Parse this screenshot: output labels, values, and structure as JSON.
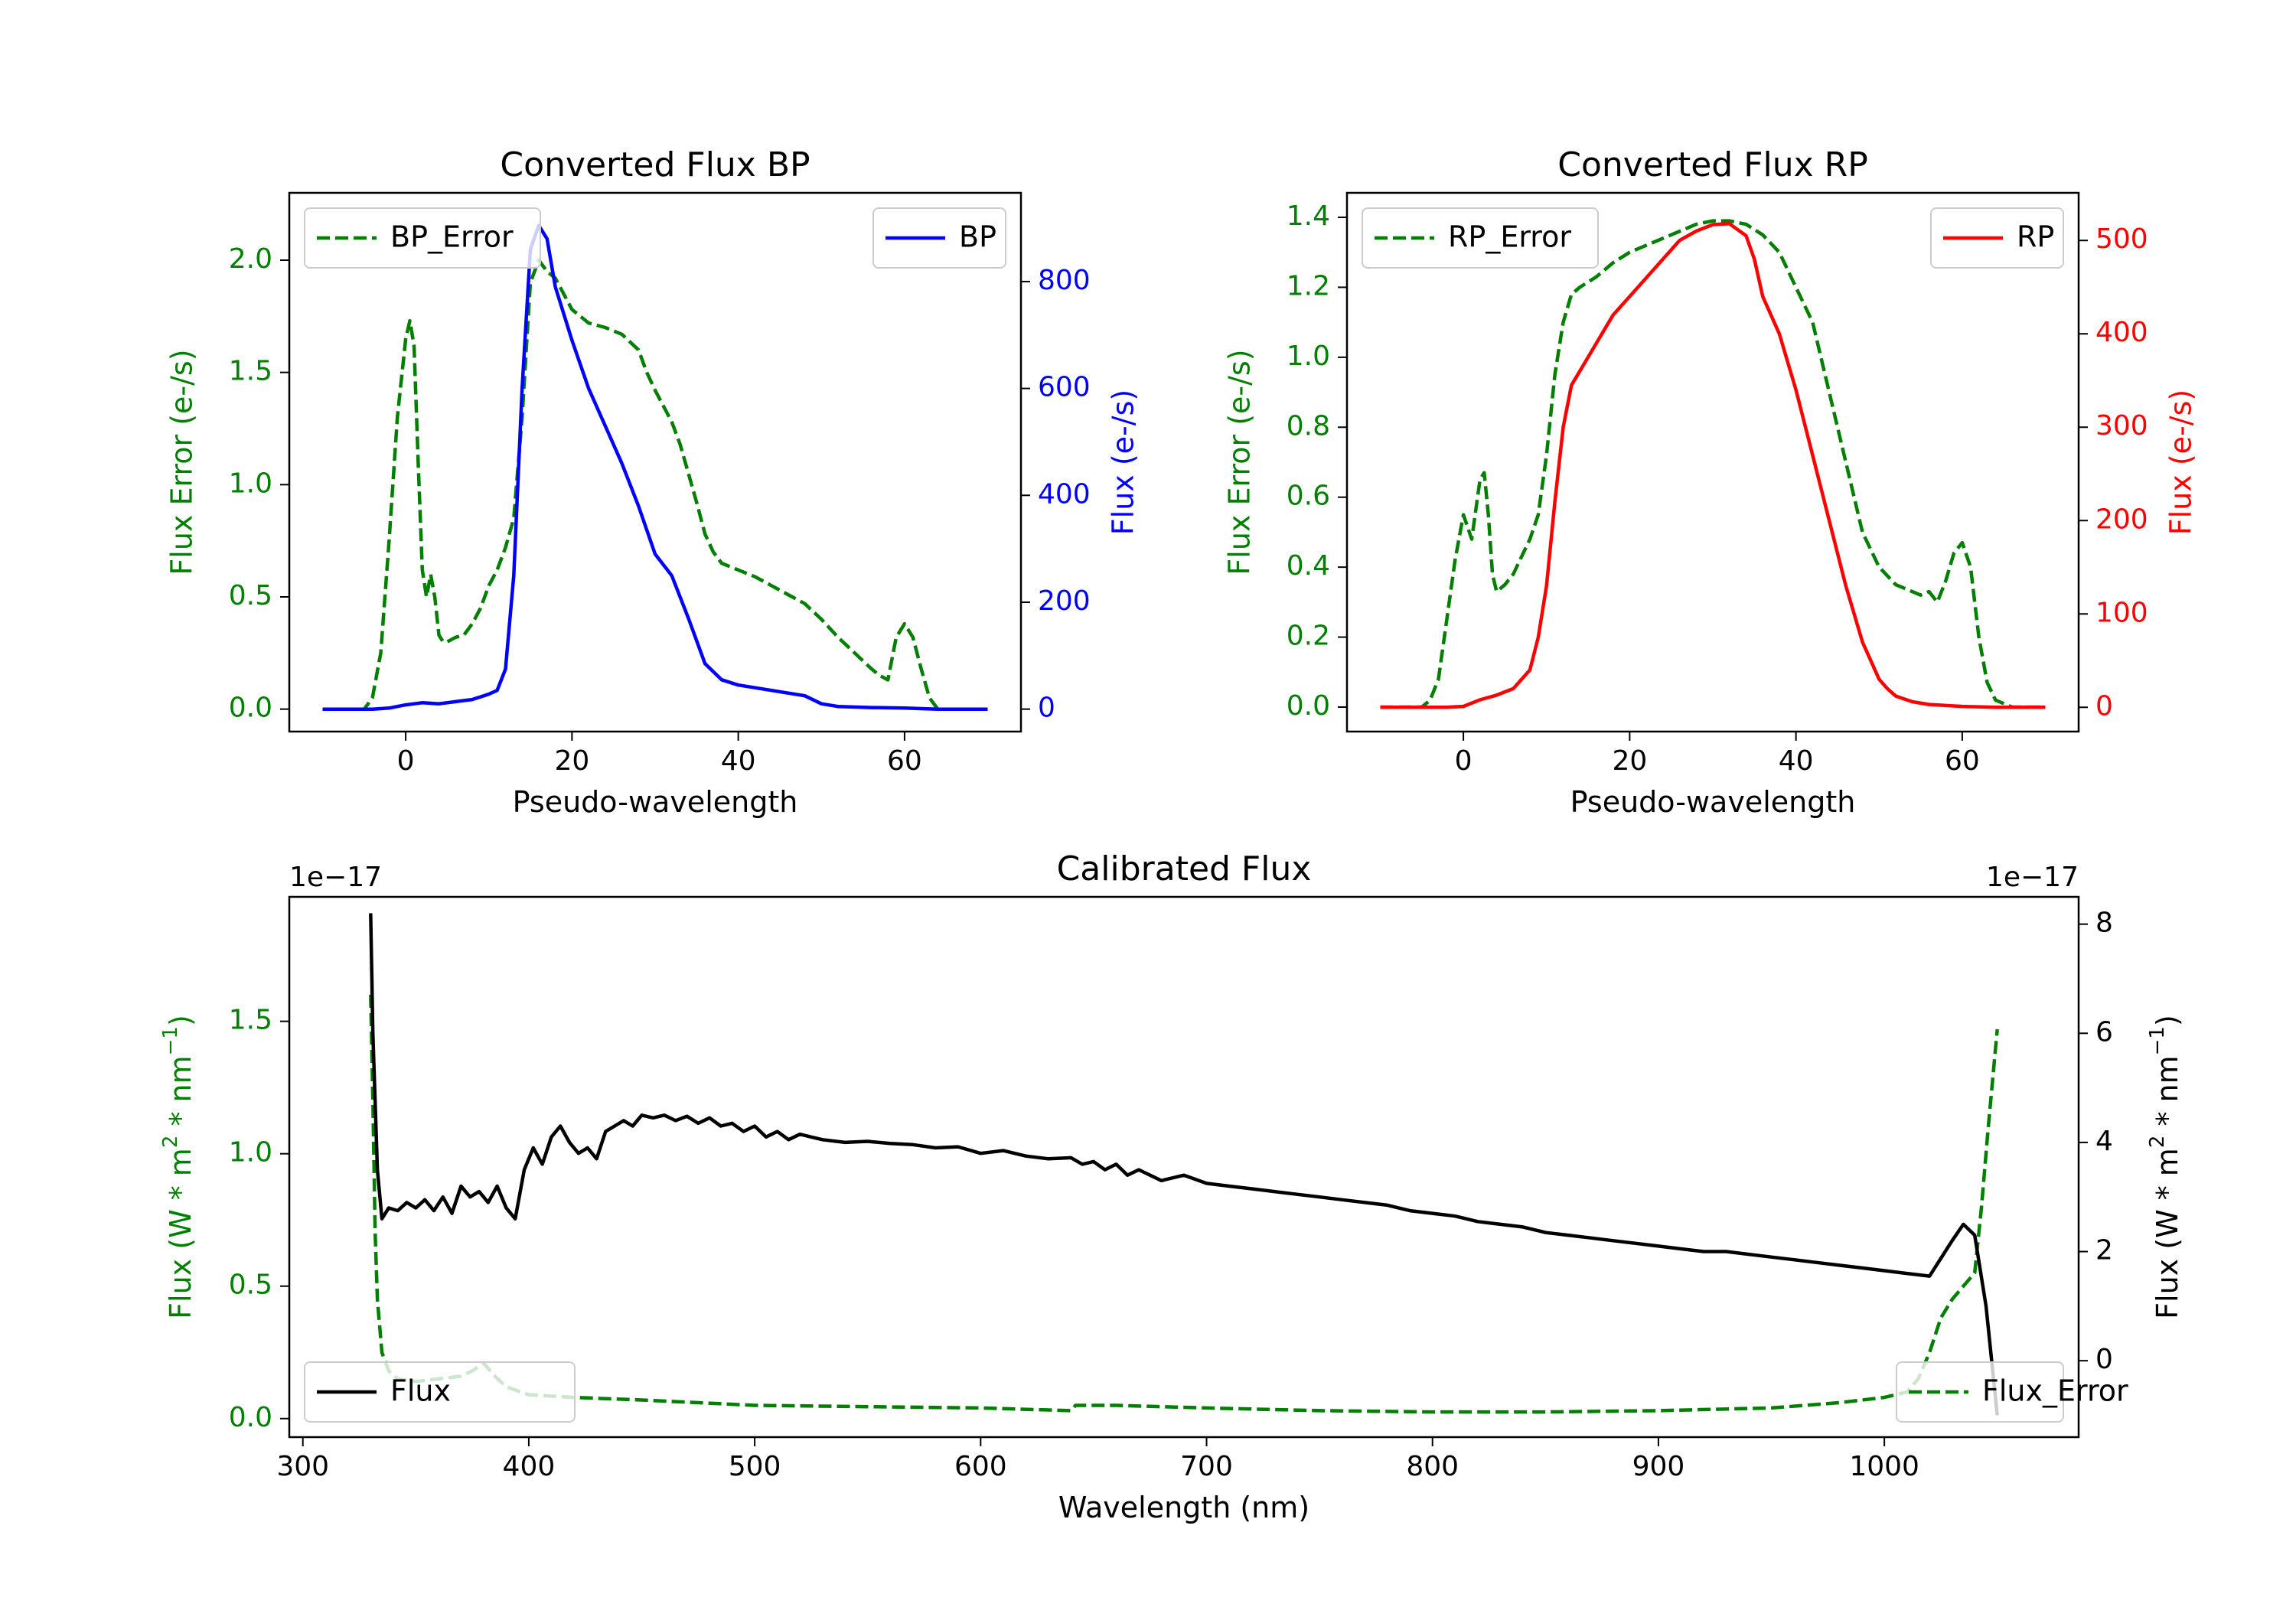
{
  "colors": {
    "error": "#007f00",
    "bp": "#0000ff",
    "rp": "#ff0000",
    "flux": "#000000"
  },
  "chart_data": [
    {
      "type": "line",
      "title": "Converted Flux BP",
      "xlabel": "Pseudo-wavelength",
      "ylabel_left": "Flux Error (e-/s)",
      "ylabel_right": "Flux (e-/s)",
      "xlim": [
        -14,
        74
      ],
      "ylim_left": [
        -0.1,
        2.3
      ],
      "ylim_right": [
        -42,
        966
      ],
      "xticks": [
        0,
        20,
        40,
        60
      ],
      "xtick_labels": [
        "0",
        "20",
        "40",
        "60"
      ],
      "yticks_left": [
        0.0,
        0.5,
        1.0,
        1.5,
        2.0
      ],
      "ytick_labels_left": [
        "0.0",
        "0.5",
        "1.0",
        "1.5",
        "2.0"
      ],
      "yticks_right": [
        0,
        200,
        400,
        600,
        800
      ],
      "ytick_labels_right": [
        "0",
        "200",
        "400",
        "600",
        "800"
      ],
      "legend_left": {
        "label": "BP_Error",
        "position": "upper left"
      },
      "legend_right": {
        "label": "BP",
        "position": "upper right"
      },
      "series": [
        {
          "name": "BP_Error",
          "axis": "left",
          "style": "dashed",
          "color_key": "error",
          "x": [
            -10,
            -5,
            -4,
            -3,
            -2,
            -1,
            0,
            0.5,
            1,
            1.5,
            2,
            2.5,
            3,
            3.5,
            4,
            4.5,
            5,
            6,
            7,
            8,
            9,
            10,
            11,
            12,
            13,
            14,
            15,
            16,
            17,
            18,
            19,
            20,
            22,
            24,
            26,
            28,
            29,
            30,
            31,
            32,
            33,
            34,
            35,
            36,
            37,
            38,
            40,
            42,
            44,
            46,
            48,
            50,
            52,
            54,
            56,
            57,
            58,
            59,
            60,
            61,
            62,
            63,
            64,
            66,
            70
          ],
          "y": [
            0,
            0,
            0.05,
            0.25,
            0.75,
            1.3,
            1.65,
            1.73,
            1.62,
            1.1,
            0.62,
            0.5,
            0.6,
            0.5,
            0.33,
            0.3,
            0.3,
            0.32,
            0.33,
            0.38,
            0.45,
            0.55,
            0.62,
            0.72,
            0.85,
            1.3,
            1.9,
            2.0,
            1.95,
            1.92,
            1.85,
            1.78,
            1.72,
            1.7,
            1.67,
            1.6,
            1.5,
            1.42,
            1.35,
            1.28,
            1.18,
            1.05,
            0.92,
            0.78,
            0.7,
            0.65,
            0.62,
            0.59,
            0.55,
            0.51,
            0.47,
            0.4,
            0.32,
            0.25,
            0.18,
            0.15,
            0.13,
            0.32,
            0.38,
            0.32,
            0.18,
            0.05,
            0.0,
            0,
            0
          ]
        },
        {
          "name": "BP",
          "axis": "right",
          "style": "solid",
          "color_key": "bp",
          "x": [
            -10,
            -4,
            -2,
            0,
            2,
            4,
            6,
            8,
            10,
            11,
            12,
            13,
            14,
            15,
            16,
            17,
            18,
            19,
            20,
            22,
            24,
            26,
            28,
            30,
            32,
            34,
            36,
            38,
            40,
            42,
            44,
            46,
            48,
            50,
            52,
            56,
            60,
            64,
            66,
            70
          ],
          "y": [
            0,
            0,
            2,
            8,
            12,
            10,
            14,
            18,
            28,
            35,
            75,
            250,
            600,
            860,
            905,
            880,
            790,
            740,
            690,
            600,
            530,
            460,
            380,
            290,
            250,
            170,
            85,
            55,
            45,
            40,
            35,
            30,
            25,
            10,
            5,
            3,
            2,
            0,
            0,
            0
          ]
        }
      ]
    },
    {
      "type": "line",
      "title": "Converted Flux RP",
      "xlabel": "Pseudo-wavelength",
      "ylabel_left": "Flux Error (e-/s)",
      "ylabel_right": "Flux (e-/s)",
      "xlim": [
        -14,
        74
      ],
      "ylim_left": [
        -0.07,
        1.47
      ],
      "ylim_right": [
        -26,
        551
      ],
      "xticks": [
        0,
        20,
        40,
        60
      ],
      "xtick_labels": [
        "0",
        "20",
        "40",
        "60"
      ],
      "yticks_left": [
        0.0,
        0.2,
        0.4,
        0.6,
        0.8,
        1.0,
        1.2,
        1.4
      ],
      "ytick_labels_left": [
        "0.0",
        "0.2",
        "0.4",
        "0.6",
        "0.8",
        "1.0",
        "1.2",
        "1.4"
      ],
      "yticks_right": [
        0,
        100,
        200,
        300,
        400,
        500
      ],
      "ytick_labels_right": [
        "0",
        "100",
        "200",
        "300",
        "400",
        "500"
      ],
      "legend_left": {
        "label": "RP_Error",
        "position": "upper left"
      },
      "legend_right": {
        "label": "RP",
        "position": "upper right"
      },
      "series": [
        {
          "name": "RP_Error",
          "axis": "left",
          "style": "dashed",
          "color_key": "error",
          "x": [
            -10,
            -5,
            -4,
            -3,
            -2,
            -1,
            0,
            1,
            2,
            2.5,
            3,
            3.5,
            4,
            5,
            6,
            7,
            8,
            9,
            10,
            11,
            12,
            13,
            14,
            16,
            18,
            20,
            22,
            24,
            26,
            28,
            30,
            32,
            34,
            36,
            38,
            40,
            42,
            44,
            46,
            48,
            50,
            52,
            54,
            55,
            56,
            57,
            58,
            59,
            60,
            61,
            62,
            63,
            64,
            66,
            70
          ],
          "y": [
            0,
            0,
            0.02,
            0.08,
            0.25,
            0.42,
            0.55,
            0.48,
            0.65,
            0.67,
            0.55,
            0.38,
            0.33,
            0.35,
            0.38,
            0.43,
            0.48,
            0.55,
            0.72,
            0.95,
            1.1,
            1.18,
            1.2,
            1.23,
            1.27,
            1.3,
            1.32,
            1.34,
            1.36,
            1.38,
            1.39,
            1.39,
            1.38,
            1.35,
            1.3,
            1.2,
            1.1,
            0.9,
            0.7,
            0.5,
            0.4,
            0.35,
            0.33,
            0.32,
            0.33,
            0.3,
            0.36,
            0.44,
            0.47,
            0.4,
            0.2,
            0.07,
            0.02,
            0,
            0
          ]
        },
        {
          "name": "RP",
          "axis": "right",
          "style": "solid",
          "color_key": "rp",
          "x": [
            -10,
            -4,
            -2,
            0,
            2,
            4,
            6,
            8,
            9,
            10,
            11,
            12,
            13,
            14,
            16,
            18,
            20,
            22,
            24,
            26,
            28,
            30,
            32,
            34,
            35,
            36,
            38,
            40,
            42,
            44,
            46,
            48,
            50,
            51,
            52,
            54,
            56,
            60,
            64,
            66,
            70
          ],
          "y": [
            0,
            0,
            0,
            1,
            8,
            13,
            20,
            40,
            75,
            130,
            220,
            300,
            345,
            360,
            390,
            420,
            440,
            460,
            480,
            500,
            510,
            517,
            518,
            505,
            480,
            440,
            400,
            340,
            270,
            200,
            130,
            70,
            30,
            20,
            12,
            6,
            3,
            1,
            0,
            0,
            0
          ]
        }
      ]
    },
    {
      "type": "line",
      "title": "Calibrated Flux",
      "xlabel": "Wavelength (nm)",
      "ylabel_left": "Flux (W * m$^2$ * nm$^{-1}$)",
      "ylabel_right": "Flux (W * m$^2$ * nm$^{-1}$)",
      "offset_left": "1e−17",
      "offset_right": "1e−17",
      "xlim": [
        294,
        1086
      ],
      "ylim_left": [
        -0.07,
        1.97
      ],
      "ylim_right": [
        -1.4,
        8.5
      ],
      "xticks": [
        300,
        400,
        500,
        600,
        700,
        800,
        900,
        1000
      ],
      "xtick_labels": [
        "300",
        "400",
        "500",
        "600",
        "700",
        "800",
        "900",
        "1000"
      ],
      "yticks_left": [
        0.0,
        0.5,
        1.0,
        1.5
      ],
      "ytick_labels_left": [
        "0.0",
        "0.5",
        "1.0",
        "1.5"
      ],
      "yticks_right": [
        0,
        2,
        4,
        6,
        8
      ],
      "ytick_labels_right": [
        "0",
        "2",
        "4",
        "6",
        "8"
      ],
      "legend_left": {
        "label": "Flux",
        "position": "lower left"
      },
      "legend_right": {
        "label": "Flux_Error",
        "position": "lower right"
      },
      "series": [
        {
          "name": "Flux_Error",
          "axis": "left",
          "style": "dashed",
          "color_key": "error",
          "x": [
            330,
            331,
            332,
            333,
            335,
            338,
            342,
            350,
            360,
            370,
            375,
            380,
            385,
            390,
            400,
            420,
            450,
            500,
            550,
            600,
            640,
            642,
            660,
            700,
            750,
            800,
            850,
            900,
            950,
            980,
            1000,
            1010,
            1015,
            1020,
            1025,
            1030,
            1035,
            1040,
            1043,
            1046,
            1050
          ],
          "y": [
            1.6,
            1.2,
            0.7,
            0.45,
            0.25,
            0.18,
            0.15,
            0.14,
            0.15,
            0.16,
            0.18,
            0.21,
            0.16,
            0.12,
            0.09,
            0.08,
            0.07,
            0.05,
            0.045,
            0.04,
            0.03,
            0.05,
            0.05,
            0.04,
            0.03,
            0.025,
            0.025,
            0.03,
            0.04,
            0.06,
            0.08,
            0.1,
            0.15,
            0.25,
            0.38,
            0.45,
            0.5,
            0.55,
            0.8,
            1.1,
            1.47
          ]
        },
        {
          "name": "Flux",
          "axis": "right",
          "style": "solid",
          "color_key": "flux",
          "x": [
            330,
            331,
            333,
            335,
            338,
            342,
            346,
            350,
            354,
            358,
            362,
            366,
            370,
            374,
            378,
            382,
            386,
            390,
            394,
            398,
            402,
            406,
            410,
            414,
            418,
            422,
            426,
            430,
            434,
            438,
            442,
            446,
            450,
            455,
            460,
            465,
            470,
            475,
            480,
            485,
            490,
            495,
            500,
            505,
            510,
            515,
            520,
            525,
            530,
            540,
            550,
            560,
            570,
            580,
            590,
            600,
            610,
            620,
            630,
            640,
            645,
            650,
            655,
            660,
            665,
            670,
            680,
            690,
            700,
            710,
            720,
            730,
            740,
            750,
            760,
            770,
            780,
            790,
            800,
            810,
            820,
            830,
            840,
            850,
            860,
            870,
            880,
            890,
            900,
            910,
            920,
            930,
            940,
            950,
            960,
            970,
            980,
            990,
            1000,
            1010,
            1020,
            1030,
            1035,
            1040,
            1045,
            1050
          ],
          "y": [
            8.2,
            6,
            3.5,
            2.6,
            2.8,
            2.75,
            2.9,
            2.8,
            2.95,
            2.75,
            3.0,
            2.7,
            3.2,
            3.0,
            3.1,
            2.9,
            3.2,
            2.8,
            2.6,
            3.5,
            3.9,
            3.6,
            4.1,
            4.3,
            4.0,
            3.8,
            3.9,
            3.7,
            4.2,
            4.3,
            4.4,
            4.3,
            4.5,
            4.45,
            4.5,
            4.4,
            4.48,
            4.35,
            4.45,
            4.3,
            4.35,
            4.2,
            4.3,
            4.1,
            4.2,
            4.05,
            4.15,
            4.1,
            4.05,
            4.0,
            4.02,
            3.98,
            3.96,
            3.9,
            3.92,
            3.8,
            3.85,
            3.75,
            3.7,
            3.72,
            3.6,
            3.65,
            3.5,
            3.6,
            3.4,
            3.5,
            3.3,
            3.4,
            3.25,
            3.2,
            3.15,
            3.1,
            3.05,
            3.0,
            2.95,
            2.9,
            2.85,
            2.75,
            2.7,
            2.65,
            2.55,
            2.5,
            2.45,
            2.35,
            2.3,
            2.25,
            2.2,
            2.15,
            2.1,
            2.05,
            2.0,
            2.0,
            1.95,
            1.9,
            1.85,
            1.8,
            1.75,
            1.7,
            1.65,
            1.6,
            1.55,
            2.2,
            2.5,
            2.3,
            1.0,
            -1.0
          ]
        }
      ]
    }
  ]
}
